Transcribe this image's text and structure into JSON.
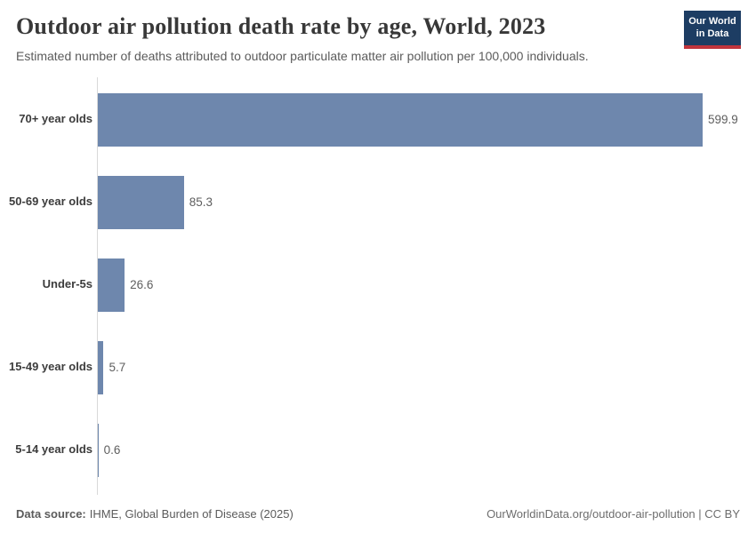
{
  "header": {
    "title": "Outdoor air pollution death rate by age, World, 2023",
    "subtitle": "Estimated number of deaths attributed to outdoor particulate matter air pollution per 100,000 individuals.",
    "logo_line1": "Our World",
    "logo_line2": "in Data"
  },
  "chart_data": {
    "type": "bar",
    "orientation": "horizontal",
    "title": "Outdoor air pollution death rate by age, World, 2023",
    "categories": [
      "70+ year olds",
      "50-69 year olds",
      "Under-5s",
      "15-49 year olds",
      "5-14 year olds"
    ],
    "values": [
      599.9,
      85.3,
      26.6,
      5.7,
      0.6
    ],
    "value_labels": [
      "599.9",
      "85.3",
      "26.6",
      "5.7",
      "0.6"
    ],
    "xlabel": "",
    "ylabel": "",
    "xlim": [
      0,
      600
    ],
    "grid": false,
    "legend": "none",
    "bar_color": "#6e87ad"
  },
  "footer": {
    "source_label": "Data source:",
    "source_value": "IHME, Global Burden of Disease (2025)",
    "attribution": "OurWorldinData.org/outdoor-air-pollution | CC BY"
  },
  "colors": {
    "bar": "#6e87ad",
    "logo_background": "#1d3d63",
    "logo_accent": "#c0343c",
    "axis_line": "#d9d9d9",
    "title_text": "#383838",
    "subtitle_text": "#5b5b5b"
  }
}
